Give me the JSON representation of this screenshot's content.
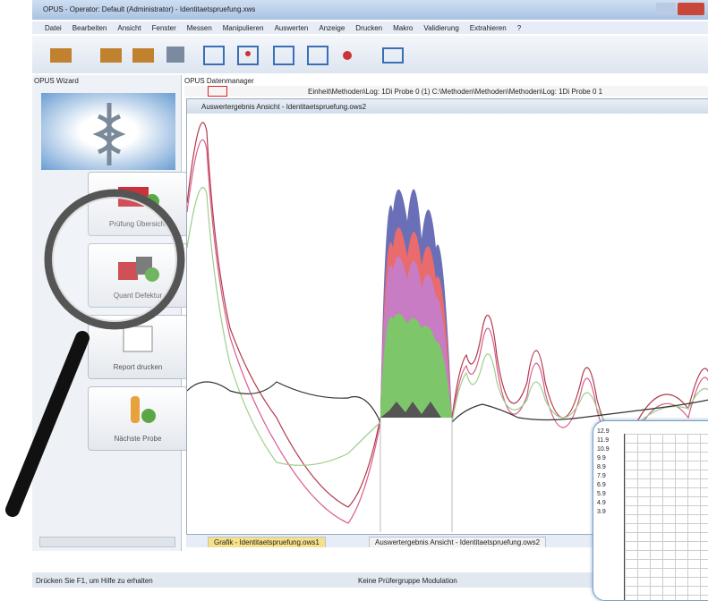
{
  "window": {
    "title": "OPUS - Operator: Default (Administrator) - Identitaetspruefung.xws"
  },
  "menu": [
    "Datei",
    "Bearbeiten",
    "Ansicht",
    "Fenster",
    "Messen",
    "Manipulieren",
    "Auswerten",
    "Anzeige",
    "Drucken",
    "Makro",
    "Validierung",
    "Extrahieren",
    "?"
  ],
  "wizard": {
    "title": "OPUS Wizard",
    "buttons": [
      "Prüfung Übersicht",
      "Quant Defektur",
      "Report drucken",
      "Nächste Probe"
    ]
  },
  "data_manager": {
    "title": "OPUS Datenmanager",
    "path": "Einheit\\Methoden\\Log: 1Di Probe 0 (1) C:\\Methoden\\Methoden\\Methoden\\Log: 1Di Probe 0 1"
  },
  "view": {
    "title": "Auswertergebnis Ansicht - Identitaetspruefung.ows2"
  },
  "tabs": [
    "Grafik - Identitaetspruefung.ows1",
    "Auswertergebnis Ansicht - Identitaetspruefung.ows2"
  ],
  "status": [
    "Drücken Sie F1, um Hilfe zu erhalten",
    "Keine Prüfergruppe Modulation"
  ],
  "inset": {
    "labels": [
      "12.9",
      "11.9",
      "10.9",
      "9.9",
      "8.9",
      "7.9",
      "6.9",
      "5.9",
      "4.9",
      "3.9"
    ]
  }
}
